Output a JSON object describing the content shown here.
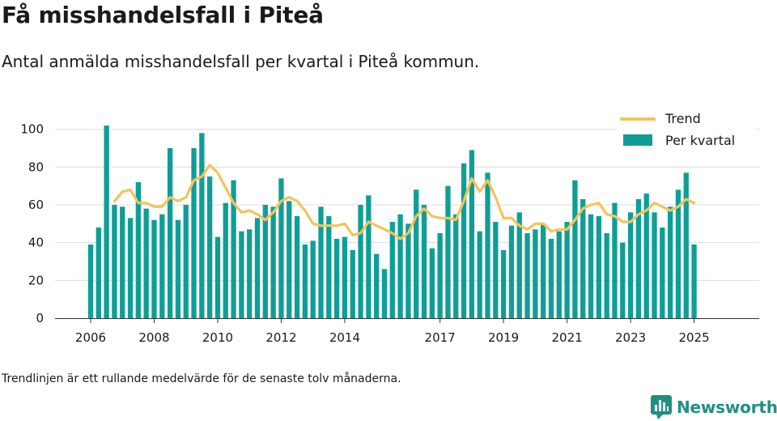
{
  "header": {
    "title": "Få misshandelsfall i Piteå",
    "subtitle": "Antal anmälda misshandelsfall per kvartal i Piteå kommun."
  },
  "footer": {
    "note": "Trendlinjen är ett rullande medelvärde för de senaste tolv månaderna.",
    "brand": "Newsworthy"
  },
  "colors": {
    "bar": "#0f9e96",
    "trend": "#f4c35b",
    "grid": "#dddddd",
    "brand": "#1f8f85"
  },
  "icons": {
    "brand_logo": "bar-chart-speech-bubble-icon"
  },
  "chart_data": {
    "type": "bar",
    "x_unit": "quarter",
    "start": "2006 Q1",
    "ylim": [
      0,
      105
    ],
    "yticks": [
      0,
      20,
      40,
      60,
      80,
      100
    ],
    "xticks": [
      "2006",
      "2008",
      "2010",
      "2012",
      "2014",
      "2017",
      "2019",
      "2021",
      "2023",
      "2025"
    ],
    "xtick_years": [
      2006,
      2008,
      2010,
      2012,
      2014,
      2017,
      2019,
      2021,
      2023,
      2025
    ],
    "grid": true,
    "legend_position": "top-right",
    "series": [
      {
        "name": "Per kvartal",
        "type": "bar",
        "values": [
          39,
          48,
          102,
          60,
          59,
          53,
          72,
          58,
          52,
          55,
          90,
          52,
          60,
          90,
          98,
          75,
          43,
          61,
          73,
          46,
          47,
          53,
          60,
          59,
          74,
          62,
          54,
          39,
          41,
          59,
          54,
          42,
          43,
          36,
          60,
          65,
          34,
          26,
          51,
          55,
          50,
          68,
          60,
          37,
          45,
          70,
          55,
          82,
          89,
          46,
          77,
          51,
          36,
          49,
          56,
          45,
          47,
          50,
          42,
          46,
          51,
          73,
          63,
          55,
          54,
          45,
          61,
          40,
          56,
          63,
          66,
          56,
          48,
          59,
          68,
          77,
          39
        ]
      },
      {
        "name": "Trend",
        "type": "line",
        "values": [
          null,
          null,
          null,
          62,
          67,
          68,
          61,
          61,
          59,
          59,
          64,
          62,
          64,
          73,
          75,
          81,
          77,
          69,
          61,
          56,
          57,
          55,
          52,
          56,
          62,
          64,
          62,
          57,
          50,
          49,
          49,
          49,
          50,
          44,
          45,
          51,
          49,
          47,
          45,
          42,
          45,
          54,
          58,
          54,
          53,
          53,
          52,
          62,
          74,
          67,
          73,
          64,
          53,
          53,
          49,
          47,
          50,
          50,
          46,
          47,
          47,
          52,
          58,
          60,
          61,
          55,
          54,
          51,
          51,
          55,
          57,
          61,
          59,
          57,
          59,
          63,
          61
        ]
      }
    ]
  }
}
